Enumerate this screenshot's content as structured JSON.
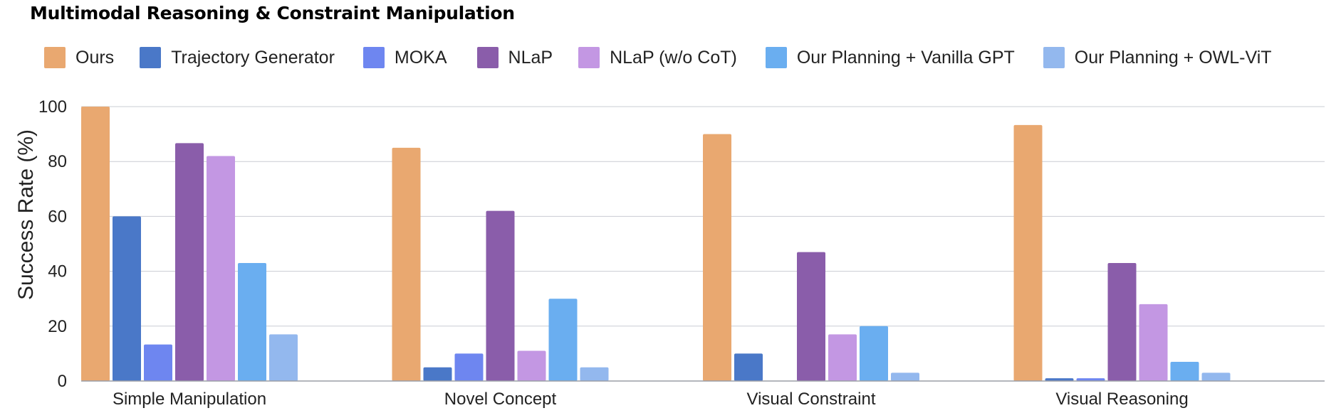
{
  "chart_data": {
    "type": "bar",
    "title": "Multimodal Reasoning & Constraint Manipulation",
    "ylabel": "Success Rate (%)",
    "xlabel": "",
    "ylim": [
      0,
      100
    ],
    "yticks": [
      0,
      20,
      40,
      60,
      80,
      100
    ],
    "grid": true,
    "legend_position": "top",
    "categories": [
      "Simple Manipulation",
      "Novel Concept",
      "Visual Constraint",
      "Visual Reasoning"
    ],
    "series": [
      {
        "name": "Ours",
        "color": "#E9A870",
        "values": [
          100,
          85,
          90,
          93.3
        ]
      },
      {
        "name": "Trajectory Generator",
        "color": "#4A78C8",
        "values": [
          60,
          5,
          10,
          1
        ]
      },
      {
        "name": "MOKA",
        "color": "#6E86F0",
        "values": [
          13.3,
          10,
          0,
          1
        ]
      },
      {
        "name": "NLaP",
        "color": "#8A5DAA",
        "values": [
          86.7,
          62,
          47,
          43
        ]
      },
      {
        "name": "NLaP (w/o CoT)",
        "color": "#C397E3",
        "values": [
          82,
          11,
          17,
          28
        ]
      },
      {
        "name": "Our Planning + Vanilla GPT",
        "color": "#6AAEF0",
        "values": [
          43,
          30,
          20,
          7
        ]
      },
      {
        "name": "Our Planning + OWL-ViT",
        "color": "#93B8EE",
        "values": [
          17,
          5,
          3,
          3
        ]
      }
    ]
  }
}
